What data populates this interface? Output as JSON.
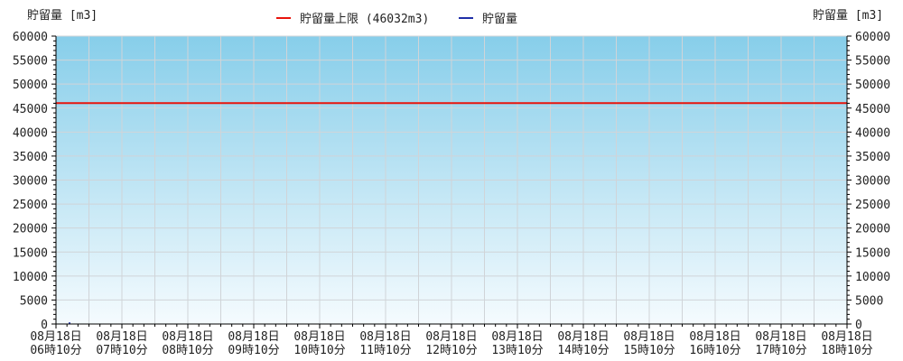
{
  "chart_data": {
    "type": "line",
    "ylabel_left": "貯留量 [m3]",
    "ylabel_right": "貯留量 [m3]",
    "legend": [
      {
        "label": "貯留量上限 (46032m3)",
        "color": "#e8140c"
      },
      {
        "label": "貯留量",
        "color": "#1f2fa8"
      }
    ],
    "ylim": [
      0,
      60000
    ],
    "yticks": [
      0,
      5000,
      10000,
      15000,
      20000,
      25000,
      30000,
      35000,
      40000,
      45000,
      50000,
      55000,
      60000
    ],
    "x_ticks": [
      {
        "date": "08月18日",
        "time": "06時10分"
      },
      {
        "date": "08月18日",
        "time": "07時10分"
      },
      {
        "date": "08月18日",
        "time": "08時10分"
      },
      {
        "date": "08月18日",
        "time": "09時10分"
      },
      {
        "date": "08月18日",
        "time": "10時10分"
      },
      {
        "date": "08月18日",
        "time": "11時10分"
      },
      {
        "date": "08月18日",
        "time": "12時10分"
      },
      {
        "date": "08月18日",
        "time": "13時10分"
      },
      {
        "date": "08月18日",
        "time": "14時10分"
      },
      {
        "date": "08月18日",
        "time": "15時10分"
      },
      {
        "date": "08月18日",
        "time": "16時10分"
      },
      {
        "date": "08月18日",
        "time": "17時10分"
      },
      {
        "date": "08月18日",
        "time": "18時10分"
      }
    ],
    "series": [
      {
        "name": "貯留量上限 (46032m3)",
        "color": "#e8140c",
        "values": [
          46032,
          46032,
          46032,
          46032,
          46032,
          46032,
          46032,
          46032,
          46032,
          46032,
          46032,
          46032,
          46032
        ]
      },
      {
        "name": "貯留量",
        "color": "#1f2fa8",
        "values": [
          0
        ]
      }
    ],
    "grid": true,
    "legend_position": "top-center",
    "background_gradient": [
      "#87ceea",
      "#f5fbfe"
    ]
  }
}
